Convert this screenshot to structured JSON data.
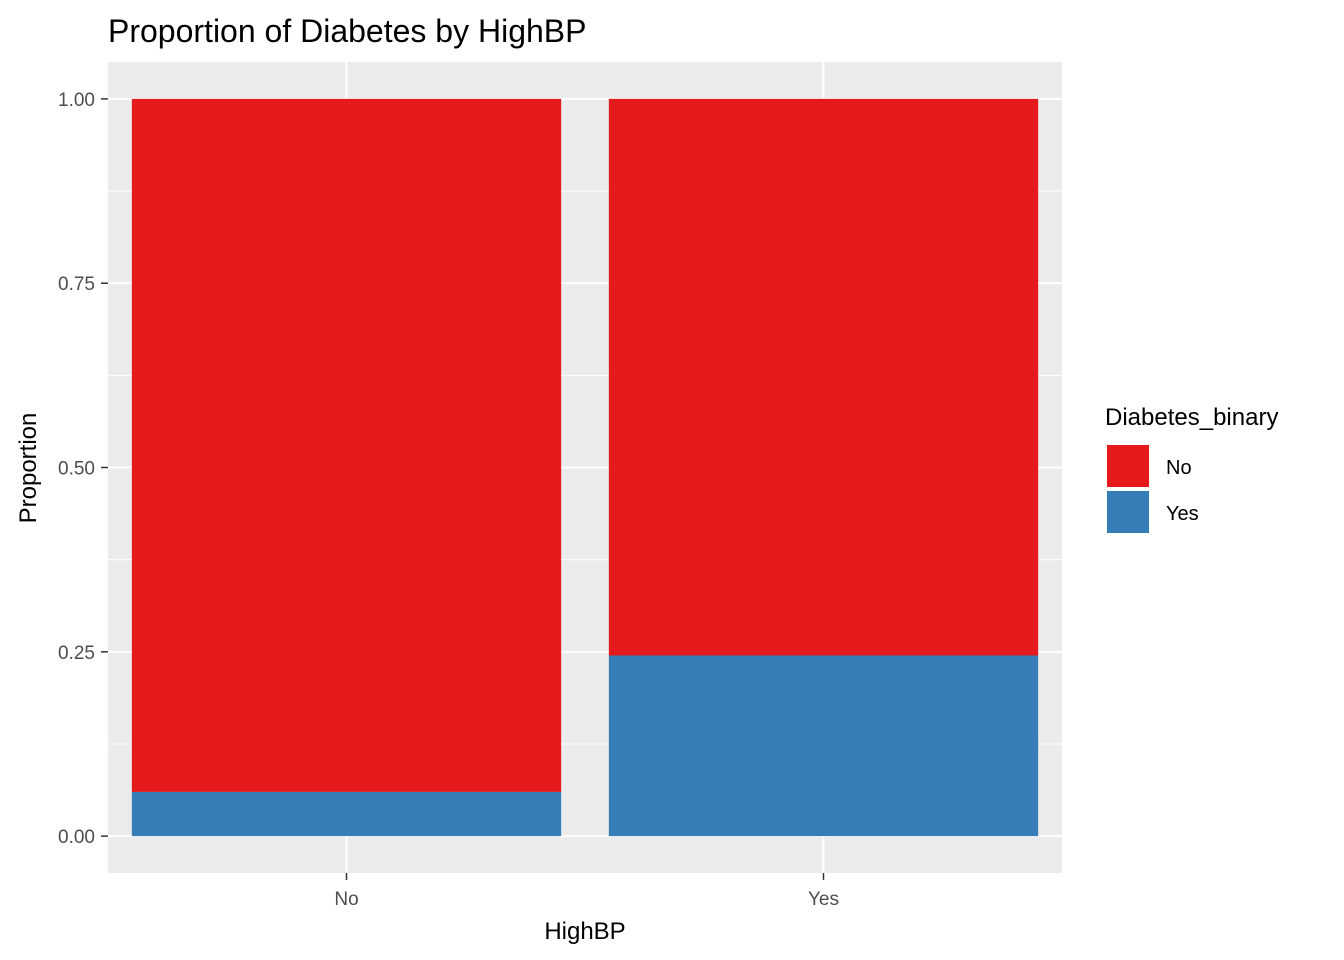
{
  "chart_data": {
    "type": "bar",
    "stacked": true,
    "title": "Proportion of Diabetes by HighBP",
    "xlabel": "HighBP",
    "ylabel": "Proportion",
    "categories": [
      "No",
      "Yes"
    ],
    "series": [
      {
        "name": "No",
        "color": "#E41A1C",
        "values": [
          0.94,
          0.755
        ]
      },
      {
        "name": "Yes",
        "color": "#377EB8",
        "values": [
          0.06,
          0.245
        ]
      }
    ],
    "ylim": [
      -0.05,
      1.05
    ],
    "yticks": [
      "0.00",
      "0.25",
      "0.50",
      "0.75",
      "1.00"
    ],
    "grid": true,
    "legend": {
      "title": "Diabetes_binary",
      "position": "right"
    },
    "panel_background": "#EBEBEB"
  }
}
